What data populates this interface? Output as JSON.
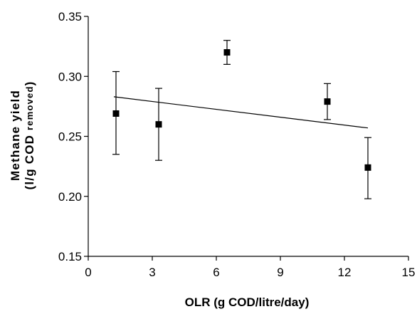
{
  "chart_data": {
    "type": "scatter",
    "xlabel": "OLR (g COD/litre/day)",
    "ylabel_line1": "Methane yield",
    "ylabel_line2_main": "(l/g COD ",
    "ylabel_line2_sub": "removed",
    "ylabel_line2_end": ")",
    "xlim": [
      0,
      15
    ],
    "ylim": [
      0.15,
      0.35
    ],
    "x_ticks": [
      0,
      3,
      6,
      9,
      12,
      15
    ],
    "x_tick_labels": [
      "0",
      "3",
      "6",
      "9",
      "12",
      "15"
    ],
    "y_ticks": [
      0.15,
      0.2,
      0.25,
      0.3,
      0.35
    ],
    "y_tick_labels": [
      "0.15",
      "0.20",
      "0.25",
      "0.30",
      "0.35"
    ],
    "points": [
      {
        "x": 1.3,
        "y": 0.269,
        "err_low": 0.235,
        "err_high": 0.304
      },
      {
        "x": 3.3,
        "y": 0.26,
        "err_low": 0.23,
        "err_high": 0.29
      },
      {
        "x": 6.5,
        "y": 0.32,
        "err_low": 0.31,
        "err_high": 0.33
      },
      {
        "x": 11.2,
        "y": 0.279,
        "err_low": 0.264,
        "err_high": 0.294
      },
      {
        "x": 13.1,
        "y": 0.224,
        "err_low": 0.198,
        "err_high": 0.249
      }
    ],
    "trendline": {
      "x": [
        1.2,
        13.1
      ],
      "y": [
        0.283,
        0.257
      ]
    },
    "grid": false,
    "legend": false
  }
}
